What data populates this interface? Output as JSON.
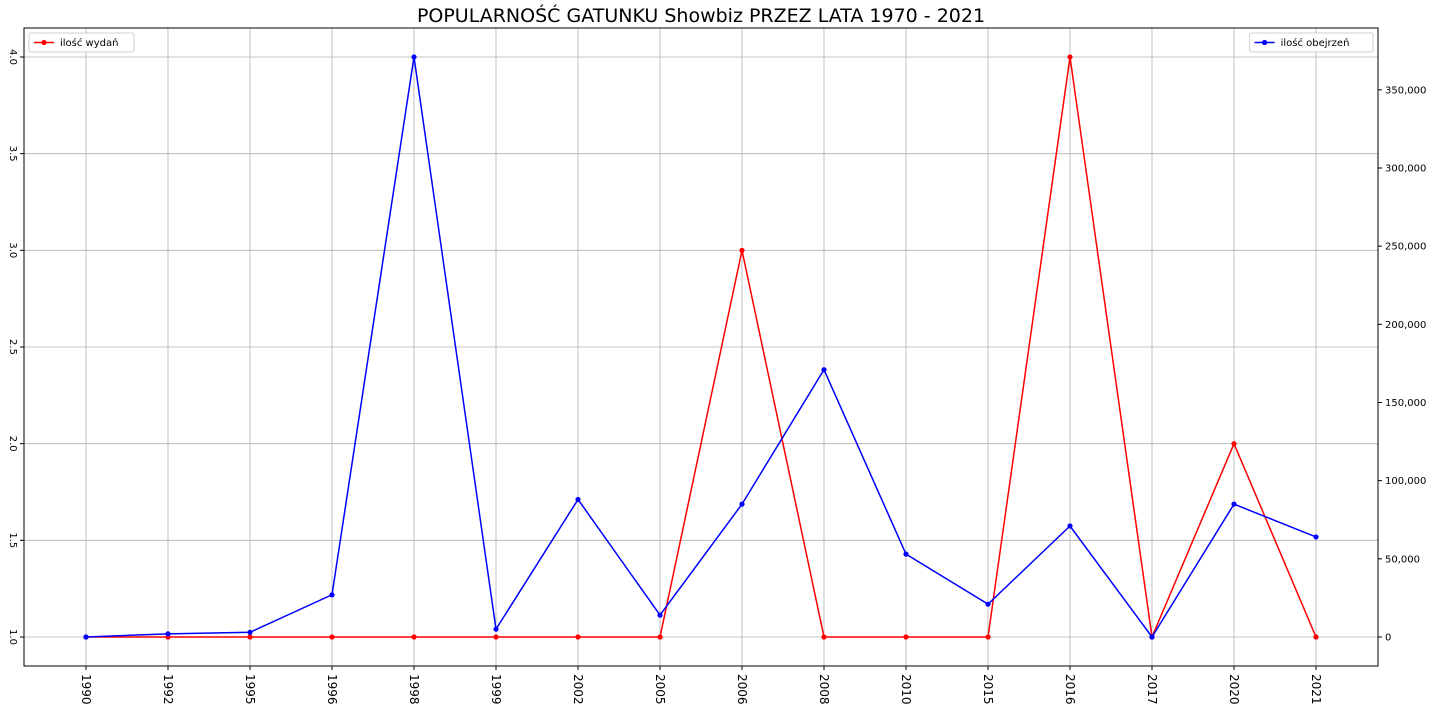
{
  "chart_data": {
    "type": "line",
    "title": "POPULARNOŚĆ GATUNKU Showbiz PRZEZ LATA 1970 - 2021",
    "categories": [
      "1990",
      "1992",
      "1995",
      "1996",
      "1998",
      "1999",
      "2002",
      "2005",
      "2006",
      "2008",
      "2010",
      "2015",
      "2016",
      "2017",
      "2020",
      "2021"
    ],
    "series": [
      {
        "name": "ilość wydań",
        "axis": "left",
        "color": "#ff0000",
        "values": [
          1,
          1,
          1,
          1,
          1,
          1,
          1,
          1,
          3,
          1,
          1,
          1,
          4,
          1,
          2,
          1
        ]
      },
      {
        "name": "ilość obejrzeń",
        "axis": "right",
        "color": "#0000ff",
        "values": [
          0,
          2000,
          3000,
          27000,
          371000,
          5000,
          88000,
          14000,
          85000,
          171000,
          53000,
          21000,
          71000,
          0,
          85000,
          64000
        ]
      }
    ],
    "y_left": {
      "ylim": [
        0.85,
        4.15
      ],
      "ticks": [
        1.0,
        1.5,
        2.0,
        2.5,
        3.0,
        3.5,
        4.0
      ],
      "tick_labels": [
        "1.0",
        "1.5",
        "2.0",
        "2.5",
        "3.0",
        "3.5",
        "4.0"
      ]
    },
    "y_right": {
      "ylim": [
        -18550,
        389550
      ],
      "ticks": [
        0,
        50000,
        100000,
        150000,
        200000,
        250000,
        300000,
        350000
      ],
      "tick_labels": [
        "0",
        "50,000",
        "100,000",
        "150,000",
        "200,000",
        "250,000",
        "300,000",
        "350,000"
      ]
    },
    "grid": true,
    "legend": [
      {
        "label": "ilość wydań",
        "placement": "top-left"
      },
      {
        "label": "ilość obejrzeń",
        "placement": "top-right"
      }
    ]
  }
}
